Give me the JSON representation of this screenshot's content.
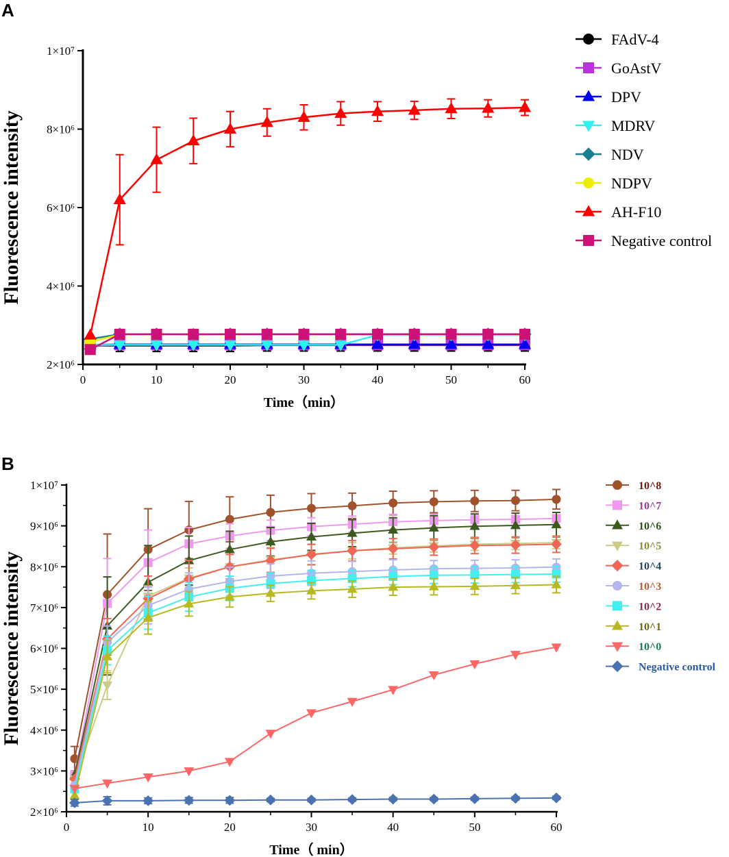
{
  "panel_a_letter": "A",
  "panel_b_letter": "B",
  "chart_data": [
    {
      "type": "line",
      "panel": "A",
      "title": "",
      "xlabel": "Time（min）",
      "ylabel": "Fluorescence intensity",
      "xlim": [
        0,
        60
      ],
      "ylim": [
        2000000,
        10000000
      ],
      "xticks": [
        "0",
        "10",
        "20",
        "30",
        "40",
        "50",
        "60"
      ],
      "yticks": [
        {
          "value": 2000000,
          "label": "2×10⁶"
        },
        {
          "value": 4000000,
          "label": "4×10⁶"
        },
        {
          "value": 6000000,
          "label": "6×10⁶"
        },
        {
          "value": 8000000,
          "label": "8×10⁶"
        },
        {
          "value": 10000000,
          "label": "1×10⁷"
        }
      ],
      "x": [
        1,
        5,
        10,
        15,
        20,
        25,
        30,
        35,
        40,
        45,
        50,
        55,
        60
      ],
      "legend_position": "right",
      "series": [
        {
          "name": "FAdV-4",
          "color": "#000000",
          "marker": "circle",
          "values": [
            2480000,
            2480000,
            2480000,
            2480000,
            2480000,
            2490000,
            2490000,
            2490000,
            2490000,
            2490000,
            2490000,
            2490000,
            2490000
          ],
          "error": [
            150000,
            150000,
            150000,
            150000,
            150000,
            150000,
            150000,
            150000,
            150000,
            150000,
            150000,
            150000,
            150000
          ]
        },
        {
          "name": "GoAstV",
          "color": "#bb33dd",
          "marker": "square",
          "values": [
            2480000,
            2500000,
            2500000,
            2500000,
            2500000,
            2500000,
            2500000,
            2500000,
            2500000,
            2500000,
            2500000,
            2500000,
            2500000
          ],
          "error": [
            0,
            0,
            0,
            0,
            0,
            0,
            0,
            0,
            0,
            0,
            0,
            0,
            0
          ]
        },
        {
          "name": "DPV",
          "color": "#0000ee",
          "marker": "triangle-up",
          "values": [
            2500000,
            2510000,
            2510000,
            2510000,
            2510000,
            2510000,
            2510000,
            2510000,
            2510000,
            2510000,
            2510000,
            2510000,
            2510000
          ],
          "error": [
            0,
            0,
            0,
            0,
            0,
            0,
            0,
            0,
            0,
            0,
            0,
            0,
            0
          ]
        },
        {
          "name": "MDRV",
          "color": "#33eeee",
          "marker": "triangle-down",
          "values": [
            2500000,
            2500000,
            2500000,
            2500000,
            2500000,
            2500000,
            2500000,
            2500000,
            2750000,
            2750000,
            2750000,
            2750000,
            2750000
          ],
          "error": [
            0,
            0,
            0,
            0,
            0,
            0,
            0,
            0,
            0,
            0,
            0,
            0,
            0
          ]
        },
        {
          "name": "NDV",
          "color": "#1a7f8e",
          "marker": "diamond",
          "values": [
            2650000,
            2770000,
            2770000,
            2760000,
            2770000,
            2770000,
            2770000,
            2770000,
            2770000,
            2770000,
            2770000,
            2770000,
            2770000
          ],
          "error": [
            0,
            0,
            0,
            0,
            0,
            0,
            0,
            0,
            0,
            0,
            0,
            0,
            0
          ]
        },
        {
          "name": "NDPV",
          "color": "#eeee00",
          "marker": "circle",
          "values": [
            2580000,
            2760000,
            2760000,
            2760000,
            2760000,
            2760000,
            2760000,
            2760000,
            2760000,
            2760000,
            2760000,
            2760000,
            2760000
          ],
          "error": [
            0,
            0,
            0,
            0,
            0,
            0,
            0,
            0,
            0,
            0,
            0,
            0,
            0
          ]
        },
        {
          "name": "AH-F10",
          "color": "#ff0000",
          "marker": "triangle-up",
          "values": [
            2750000,
            6200000,
            7220000,
            7700000,
            8000000,
            8170000,
            8300000,
            8400000,
            8450000,
            8480000,
            8520000,
            8530000,
            8550000
          ],
          "error": [
            0,
            1150000,
            830000,
            580000,
            450000,
            350000,
            320000,
            300000,
            250000,
            230000,
            250000,
            220000,
            200000
          ]
        },
        {
          "name": "Negative control",
          "color": "#cc1177",
          "marker": "square",
          "values": [
            2380000,
            2770000,
            2770000,
            2770000,
            2770000,
            2770000,
            2770000,
            2770000,
            2770000,
            2770000,
            2770000,
            2770000,
            2770000
          ],
          "error": [
            0,
            0,
            0,
            0,
            0,
            0,
            0,
            0,
            0,
            0,
            0,
            0,
            0
          ]
        }
      ]
    },
    {
      "type": "line",
      "panel": "B",
      "title": "",
      "xlabel": "Time（  min）",
      "ylabel": "Fluorescence intensity",
      "xlim": [
        0,
        60
      ],
      "ylim": [
        2000000,
        10000000
      ],
      "xticks": [
        "0",
        "10",
        "20",
        "30",
        "40",
        "50",
        "60"
      ],
      "yticks": [
        {
          "value": 2000000,
          "label": "2×10⁶"
        },
        {
          "value": 3000000,
          "label": "3×10⁶"
        },
        {
          "value": 4000000,
          "label": "4×10⁶"
        },
        {
          "value": 5000000,
          "label": "5×10⁶"
        },
        {
          "value": 6000000,
          "label": "6×10⁶"
        },
        {
          "value": 7000000,
          "label": "7×10⁶"
        },
        {
          "value": 8000000,
          "label": "8×10⁶"
        },
        {
          "value": 9000000,
          "label": "9×10⁶"
        },
        {
          "value": 10000000,
          "label": "1×10⁷"
        }
      ],
      "x": [
        1,
        5,
        10,
        15,
        20,
        25,
        30,
        35,
        40,
        45,
        50,
        55,
        60
      ],
      "legend_position": "right",
      "series": [
        {
          "name": "10^8",
          "color": "#a0522d",
          "text_color": "#6b1a10",
          "marker": "circle",
          "values": [
            3300000,
            7320000,
            8420000,
            8900000,
            9160000,
            9330000,
            9430000,
            9490000,
            9560000,
            9590000,
            9610000,
            9620000,
            9650000
          ],
          "error": [
            300000,
            1480000,
            1000000,
            700000,
            550000,
            420000,
            360000,
            310000,
            290000,
            270000,
            260000,
            250000,
            240000
          ]
        },
        {
          "name": "10^7",
          "color": "#ee99ee",
          "text_color": "#9a3a9a",
          "marker": "square",
          "values": [
            2900000,
            7100000,
            8100000,
            8560000,
            8750000,
            8890000,
            8980000,
            9040000,
            9100000,
            9130000,
            9150000,
            9160000,
            9180000
          ],
          "error": [
            0,
            1100000,
            800000,
            400000,
            300000,
            250000,
            220000,
            200000,
            180000,
            160000,
            150000,
            150000,
            150000
          ]
        },
        {
          "name": "10^6",
          "color": "#3a5a1e",
          "text_color": "#2e4d12",
          "marker": "triangle-up",
          "values": [
            2900000,
            6550000,
            7620000,
            8150000,
            8420000,
            8610000,
            8730000,
            8820000,
            8900000,
            8950000,
            8990000,
            9010000,
            9030000
          ],
          "error": [
            0,
            1200000,
            900000,
            600000,
            450000,
            350000,
            330000,
            330000,
            300000,
            300000,
            300000,
            300000,
            300000
          ]
        },
        {
          "name": "10^5",
          "color": "#cccc88",
          "text_color": "#8a8a3a",
          "marker": "triangle-down",
          "values": [
            2800000,
            5100000,
            7280000,
            7720000,
            8000000,
            8170000,
            8290000,
            8390000,
            8460000,
            8510000,
            8550000,
            8570000,
            8590000
          ],
          "error": [
            0,
            350000,
            250000,
            250000,
            300000,
            300000,
            250000,
            200000,
            150000,
            150000,
            150000,
            150000,
            150000
          ]
        },
        {
          "name": "10^4",
          "color": "#ee6655",
          "text_color": "#224466",
          "marker": "diamond",
          "values": [
            2800000,
            6230000,
            7220000,
            7700000,
            8000000,
            8150000,
            8300000,
            8390000,
            8440000,
            8480000,
            8520000,
            8530000,
            8550000
          ],
          "error": [
            0,
            500000,
            550000,
            450000,
            300000,
            300000,
            250000,
            250000,
            250000,
            200000,
            200000,
            200000,
            200000
          ]
        },
        {
          "name": "10^3",
          "color": "#b4b4ee",
          "text_color": "#c05a3a",
          "marker": "circle",
          "values": [
            2650000,
            6150000,
            7050000,
            7450000,
            7640000,
            7770000,
            7840000,
            7880000,
            7920000,
            7950000,
            7960000,
            7970000,
            7990000
          ],
          "error": [
            0,
            400000,
            450000,
            400000,
            350000,
            300000,
            300000,
            250000,
            250000,
            200000,
            200000,
            200000,
            200000
          ]
        },
        {
          "name": "10^2",
          "color": "#44eeee",
          "text_color": "#8a2a4a",
          "marker": "square",
          "values": [
            2560000,
            5950000,
            6870000,
            7260000,
            7470000,
            7590000,
            7660000,
            7710000,
            7760000,
            7790000,
            7800000,
            7810000,
            7820000
          ],
          "error": [
            0,
            350000,
            400000,
            350000,
            300000,
            250000,
            250000,
            200000,
            200000,
            200000,
            200000,
            200000,
            200000
          ]
        },
        {
          "name": "10^1",
          "color": "#b8b820",
          "text_color": "#6a6a10",
          "marker": "triangle-up",
          "values": [
            2400000,
            5800000,
            6750000,
            7090000,
            7260000,
            7350000,
            7410000,
            7450000,
            7500000,
            7510000,
            7520000,
            7540000,
            7560000
          ],
          "error": [
            0,
            400000,
            400000,
            300000,
            250000,
            200000,
            200000,
            200000,
            200000,
            200000,
            200000,
            200000,
            200000
          ]
        },
        {
          "name": "10^0",
          "color": "#ff6666",
          "text_color": "#1a7a5a",
          "marker": "triangle-down",
          "values": [
            2570000,
            2700000,
            2850000,
            3000000,
            3230000,
            3920000,
            4420000,
            4700000,
            4990000,
            5350000,
            5620000,
            5850000,
            6030000
          ],
          "error": [
            0,
            0,
            0,
            0,
            0,
            0,
            0,
            0,
            0,
            0,
            0,
            0,
            0
          ]
        },
        {
          "name": "Negative control",
          "color": "#4a72b0",
          "text_color": "#2a5aa8",
          "marker": "diamond",
          "values": [
            2220000,
            2270000,
            2270000,
            2280000,
            2280000,
            2290000,
            2290000,
            2300000,
            2310000,
            2310000,
            2320000,
            2330000,
            2340000
          ],
          "error": [
            80000,
            100000,
            70000,
            70000,
            70000,
            40000,
            40000,
            40000,
            40000,
            40000,
            40000,
            40000,
            40000
          ]
        }
      ]
    }
  ]
}
